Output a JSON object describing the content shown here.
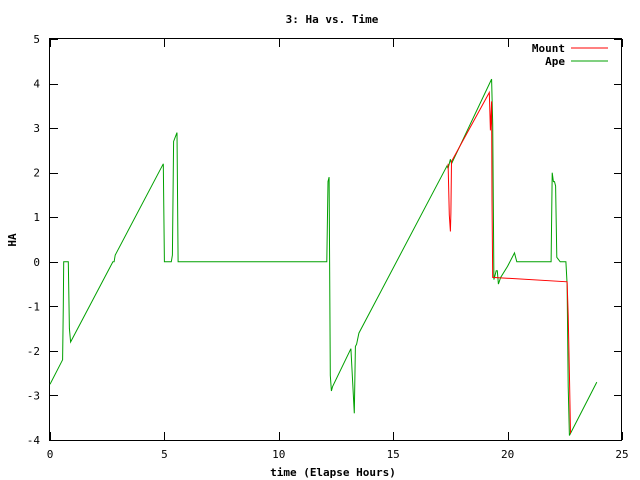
{
  "chart_data": {
    "type": "line",
    "title": "3: Ha vs. Time",
    "xlabel": "time (Elapse Hours)",
    "ylabel": "HA",
    "xlim": [
      0,
      25
    ],
    "ylim": [
      -4,
      5
    ],
    "xticks": [
      0,
      5,
      10,
      15,
      20,
      25
    ],
    "yticks": [
      -4,
      -3,
      -2,
      -1,
      0,
      1,
      2,
      3,
      4,
      5
    ],
    "grid": false,
    "legend_position": "top-right",
    "series": [
      {
        "name": "Mount",
        "color": "#ff0000",
        "x": [
          17.4,
          17.45,
          17.5,
          17.52,
          17.55,
          19.2,
          19.25,
          19.3,
          19.32,
          19.35,
          22.6,
          22.65,
          22.7,
          22.75
        ],
        "y": [
          2.2,
          1.05,
          0.68,
          1.1,
          2.25,
          3.8,
          2.95,
          3.6,
          1.4,
          -0.35,
          -0.45,
          -1.2,
          -2.5,
          -3.85
        ]
      },
      {
        "name": "Ape",
        "color": "#00a000",
        "x": [
          0.0,
          0.55,
          0.58,
          0.6,
          0.8,
          0.85,
          0.9,
          2.75,
          2.8,
          2.85,
          4.95,
          5.0,
          5.3,
          5.35,
          5.4,
          5.55,
          5.6,
          5.65,
          12.1,
          12.15,
          12.2,
          12.25,
          12.3,
          12.35,
          13.15,
          13.3,
          13.35,
          13.4,
          13.5,
          17.3,
          17.35,
          17.4,
          17.5,
          17.55,
          19.3,
          19.35,
          19.4,
          19.5,
          19.55,
          19.6,
          19.7,
          20.0,
          20.3,
          20.35,
          20.4,
          20.5,
          21.9,
          21.95,
          22.0,
          22.05,
          22.1,
          22.15,
          22.3,
          22.4,
          22.55,
          22.6,
          22.65,
          22.7,
          23.5,
          23.9
        ],
        "y": [
          -2.75,
          -2.2,
          -1.0,
          0.0,
          0.0,
          -1.5,
          -1.8,
          0.0,
          0.0,
          0.15,
          2.2,
          0.0,
          0.0,
          0.15,
          2.7,
          2.9,
          0.0,
          0.0,
          0.0,
          1.8,
          1.9,
          -2.55,
          -2.9,
          -2.8,
          -1.95,
          -3.4,
          -1.9,
          -1.85,
          -1.6,
          2.1,
          2.15,
          2.1,
          2.3,
          2.2,
          4.1,
          3.1,
          -0.4,
          -0.2,
          -0.2,
          -0.5,
          -0.35,
          -0.1,
          0.2,
          0.1,
          0.0,
          0.0,
          0.0,
          2.0,
          1.8,
          1.8,
          1.7,
          0.1,
          0.0,
          0.0,
          0.0,
          -0.5,
          -2.8,
          -3.9,
          -3.1,
          -2.7
        ]
      }
    ]
  }
}
